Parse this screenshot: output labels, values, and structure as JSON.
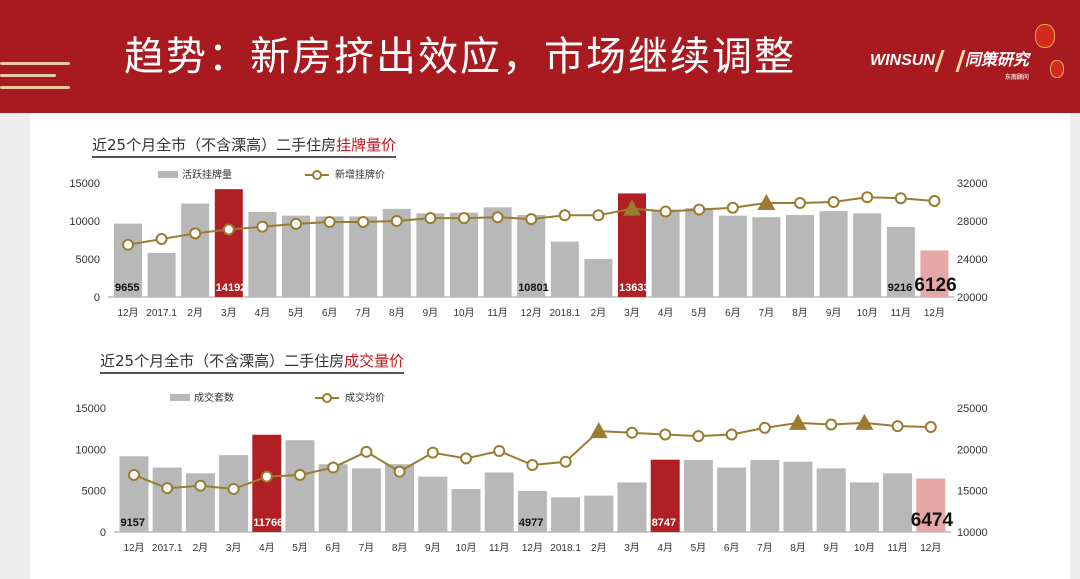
{
  "header": {
    "title": "趋势：新房挤出效应，市场继续调整",
    "logo_text": "WINSUN",
    "logo_cn": "同策研究",
    "logo_sub": "东南顾问"
  },
  "colors": {
    "bar": "#b8b8b8",
    "highlight": "#b01f24",
    "last": "#e6a7a7",
    "line": "#9b7b30",
    "banner": "#a81920"
  },
  "chart_data": [
    {
      "type": "bar",
      "title_prefix": "近25个月全市（不含溧高）二手住房",
      "title_highlight": "挂牌量价",
      "categories": [
        "12月",
        "2017.1",
        "2月",
        "3月",
        "4月",
        "5月",
        "6月",
        "7月",
        "8月",
        "9月",
        "10月",
        "11月",
        "12月",
        "2018.1",
        "2月",
        "3月",
        "4月",
        "5月",
        "6月",
        "7月",
        "8月",
        "9月",
        "10月",
        "11月",
        "12月"
      ],
      "series": [
        {
          "name": "活跃挂牌量",
          "axis": "left",
          "values": [
            9655,
            5800,
            12300,
            14192,
            11200,
            10700,
            10600,
            10600,
            11600,
            11000,
            11100,
            11800,
            10801,
            7300,
            5000,
            13633,
            11500,
            11700,
            10700,
            10500,
            10800,
            11300,
            11000,
            9216,
            6126
          ]
        },
        {
          "name": "新增挂牌价",
          "axis": "right",
          "values": [
            25500,
            26100,
            26700,
            27100,
            27400,
            27700,
            27900,
            27900,
            28000,
            28300,
            28300,
            28400,
            28200,
            28600,
            28600,
            29300,
            29000,
            29200,
            29400,
            29900,
            29900,
            30000,
            30500,
            30400,
            30100
          ]
        }
      ],
      "highlight_indices": [
        3,
        15
      ],
      "last_index": 24,
      "triangle_indices": [
        15,
        19
      ],
      "data_labels": [
        {
          "index": 0,
          "text": "9655"
        },
        {
          "index": 3,
          "text": "14192"
        },
        {
          "index": 12,
          "text": "10801"
        },
        {
          "index": 15,
          "text": "13633"
        },
        {
          "index": 23,
          "text": "9216"
        },
        {
          "index": 24,
          "text": "6126"
        }
      ],
      "y_left": {
        "range": [
          0,
          15000
        ],
        "ticks": [
          "0",
          "5000",
          "10000",
          "15000"
        ]
      },
      "y_right": {
        "range": [
          20000,
          32000
        ],
        "ticks": [
          "20000",
          "24000",
          "28000",
          "32000"
        ]
      },
      "legend_position": "top-left",
      "grid": false
    },
    {
      "type": "bar",
      "title_prefix": "近25个月全市（不含溧高）二手住房",
      "title_highlight": "成交量价",
      "categories": [
        "12月",
        "2017.1",
        "2月",
        "3月",
        "4月",
        "5月",
        "6月",
        "7月",
        "8月",
        "9月",
        "10月",
        "11月",
        "12月",
        "2018.1",
        "2月",
        "3月",
        "4月",
        "5月",
        "6月",
        "7月",
        "8月",
        "9月",
        "10月",
        "11月",
        "12月"
      ],
      "series": [
        {
          "name": "成交套数",
          "axis": "left",
          "values": [
            9157,
            7800,
            7100,
            9300,
            11766,
            11100,
            8200,
            7700,
            8200,
            6700,
            5200,
            7200,
            4977,
            4200,
            4400,
            6000,
            8747,
            8700,
            7800,
            8700,
            8500,
            7700,
            6000,
            7100,
            6474
          ]
        },
        {
          "name": "成交均价",
          "axis": "right",
          "values": [
            16900,
            15300,
            15600,
            15200,
            16700,
            16900,
            17800,
            19700,
            17300,
            19600,
            18900,
            19800,
            18100,
            18500,
            22200,
            22000,
            21800,
            21600,
            21800,
            22600,
            23200,
            23000,
            23200,
            22800,
            22700
          ]
        }
      ],
      "highlight_indices": [
        4,
        16
      ],
      "last_index": 24,
      "triangle_indices": [
        14,
        20,
        22
      ],
      "data_labels": [
        {
          "index": 0,
          "text": "9157"
        },
        {
          "index": 4,
          "text": "11766"
        },
        {
          "index": 12,
          "text": "4977"
        },
        {
          "index": 16,
          "text": "8747"
        },
        {
          "index": 24,
          "text": "6474"
        }
      ],
      "y_left": {
        "range": [
          0,
          15000
        ],
        "ticks": [
          "0",
          "5000",
          "10000",
          "15000"
        ]
      },
      "y_right": {
        "range": [
          10000,
          25000
        ],
        "ticks": [
          "10000",
          "15000",
          "20000",
          "25000"
        ]
      },
      "legend_position": "top-left",
      "grid": false
    }
  ]
}
